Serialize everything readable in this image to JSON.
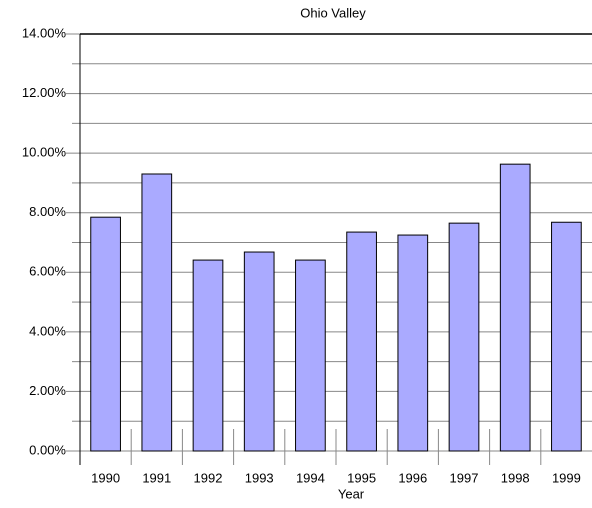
{
  "chart_data": {
    "type": "bar",
    "title": "Ohio Valley",
    "x_label": "Year",
    "categories": [
      "1990",
      "1991",
      "1992",
      "1993",
      "1994",
      "1995",
      "1996",
      "1997",
      "1998",
      "1999"
    ],
    "values": [
      7.85,
      9.3,
      6.41,
      6.68,
      6.41,
      7.35,
      7.25,
      7.65,
      9.63,
      7.68
    ],
    "color": "#aaaaff",
    "ylim": [
      0,
      14
    ],
    "yticks": [
      {
        "value": 0,
        "label": "0.00%"
      },
      {
        "value": 2,
        "label": "2.00%"
      },
      {
        "value": 4,
        "label": "4.00%"
      },
      {
        "value": 6,
        "label": "6.00%"
      },
      {
        "value": 8,
        "label": "8.00%"
      },
      {
        "value": 10,
        "label": "10.00%"
      },
      {
        "value": 12,
        "label": "12.00%"
      },
      {
        "value": 14,
        "label": "14.00%"
      }
    ],
    "minor_yticks": [
      1,
      3,
      5,
      7,
      9,
      11,
      13
    ],
    "grid": true
  }
}
